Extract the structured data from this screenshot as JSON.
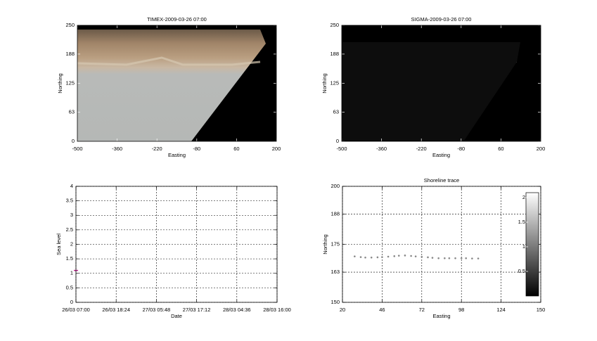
{
  "chart_data": [
    {
      "type": "image",
      "title": "TIMEX-2009-03-26 07:00",
      "xlabel": "Easting",
      "ylabel": "Northing",
      "xlim": [
        -500,
        200
      ],
      "xticks": [
        -500,
        -360,
        -220,
        -80,
        60,
        200
      ],
      "ylim": [
        0,
        250
      ],
      "yticks": [
        0,
        63,
        125,
        188,
        250
      ]
    },
    {
      "type": "image",
      "title": "SIGMA-2009-03-26 07:00",
      "xlabel": "Easting",
      "ylabel": "Northing",
      "xlim": [
        -500,
        200
      ],
      "xticks": [
        -500,
        -360,
        -220,
        -80,
        60,
        200
      ],
      "ylim": [
        0,
        250
      ],
      "yticks": [
        0,
        63,
        125,
        188,
        250
      ]
    },
    {
      "type": "line",
      "xlabel": "Date",
      "ylabel": "Sea level",
      "categories": [
        "26/03 07:00",
        "26/03 18:24",
        "27/03 05:48",
        "27/03 17:12",
        "28/03 04:36",
        "28/03 16:00"
      ],
      "values": [
        1.1,
        null,
        null,
        null,
        null,
        null
      ],
      "color": "#c0208f",
      "ylim": [
        0,
        4
      ],
      "yticks": [
        0,
        0.5,
        1,
        1.5,
        2,
        2.5,
        3,
        3.5,
        4
      ],
      "grid": true
    },
    {
      "type": "scatter",
      "title": "Shoreline trace",
      "xlabel": "Easting",
      "ylabel": "Northing",
      "x": [
        28,
        32,
        35,
        39,
        43,
        46,
        50,
        54,
        57,
        61,
        65,
        68,
        72,
        76,
        79,
        83,
        87,
        90,
        94,
        98,
        101,
        105,
        109
      ],
      "values": [
        169.8,
        169.5,
        169.3,
        169.3,
        169.4,
        169.5,
        169.7,
        169.9,
        170.1,
        170.2,
        170.0,
        169.8,
        169.6,
        169.4,
        169.2,
        169.0,
        169.0,
        169.0,
        169.0,
        169.0,
        169.0,
        168.9,
        168.9
      ],
      "color": "#888888",
      "xlim": [
        20,
        150
      ],
      "xticks": [
        20,
        46,
        72,
        98,
        124,
        150
      ],
      "ylim": [
        150,
        200
      ],
      "yticks": [
        150,
        163,
        175,
        188,
        200
      ],
      "grid": true,
      "colorbar": {
        "lim": [
          0,
          2.1
        ],
        "ticks": [
          0.5,
          1,
          1.5,
          2
        ]
      }
    }
  ]
}
